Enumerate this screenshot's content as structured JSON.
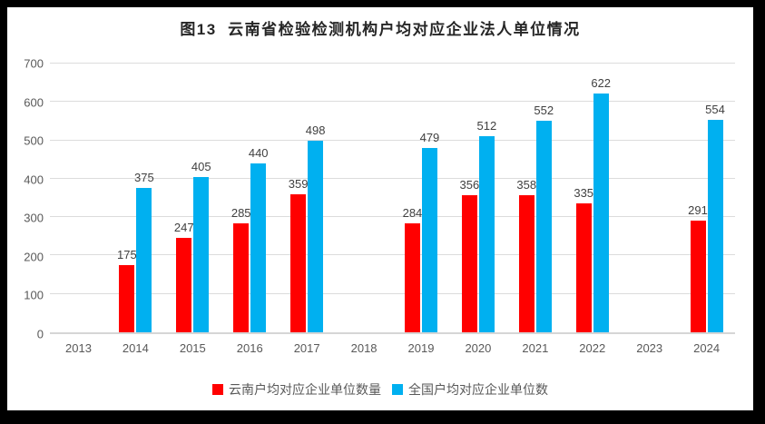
{
  "chart_data": {
    "type": "bar",
    "title": "图13  云南省检验检测机构户均对应企业法人单位情况",
    "categories": [
      "2013",
      "2014",
      "2015",
      "2016",
      "2017",
      "2018",
      "2019",
      "2020",
      "2021",
      "2022",
      "2023",
      "2024"
    ],
    "series": [
      {
        "name": "云南户均对应企业单位数量",
        "color": "#ff0000",
        "values": [
          null,
          175,
          247,
          285,
          359,
          null,
          284,
          356,
          358,
          335,
          null,
          291
        ]
      },
      {
        "name": "全国户均对应企业单位数",
        "color": "#00b0f0",
        "values": [
          null,
          375,
          405,
          440,
          498,
          null,
          479,
          512,
          552,
          622,
          null,
          554
        ]
      }
    ],
    "ylim": [
      0,
      700
    ],
    "yticks": [
      0,
      100,
      200,
      300,
      400,
      500,
      600,
      700
    ],
    "xlabel": "",
    "ylabel": "",
    "grid": true,
    "legend_position": "bottom",
    "data_labels": true,
    "colors": {
      "grid": "#dcdcdc",
      "axis_text": "#595959",
      "label_text": "#404040",
      "frame": "#000000",
      "background": "#ffffff"
    }
  }
}
